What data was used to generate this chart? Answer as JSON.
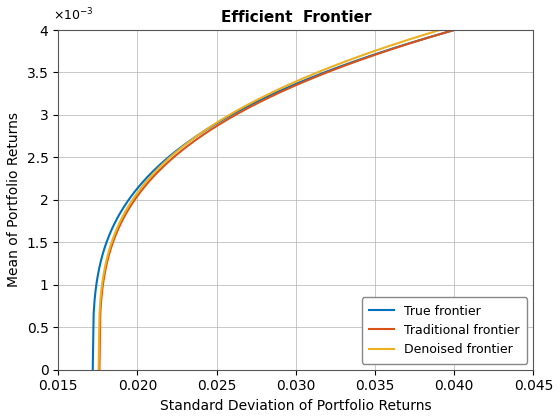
{
  "title": "Efficient  Frontier",
  "xlabel": "Standard Deviation of Portfolio Returns",
  "ylabel": "Mean of Portfolio Returns",
  "xlim": [
    0.015,
    0.045
  ],
  "ylim": [
    0,
    0.004
  ],
  "xticks": [
    0.015,
    0.02,
    0.025,
    0.03,
    0.035,
    0.04,
    0.045
  ],
  "yticks": [
    0,
    0.0005,
    0.001,
    0.0015,
    0.002,
    0.0025,
    0.003,
    0.0035,
    0.004
  ],
  "true_color": "#0072BD",
  "traditional_color": "#D95319",
  "denoised_color": "#EDB120",
  "legend_labels": [
    "True frontier",
    "Traditional frontier",
    "Denoised frontier"
  ],
  "line_width": 1.5,
  "background_color": "#ffffff",
  "grid_color": "#b0b0b0"
}
